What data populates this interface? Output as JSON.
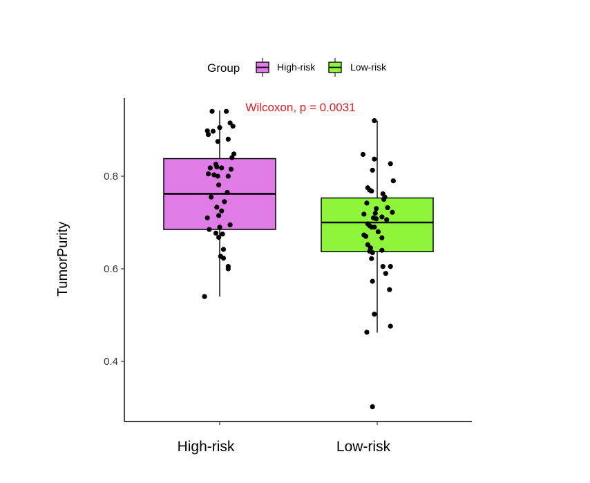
{
  "chart_data": {
    "type": "boxplot",
    "ylabel": "TumorPurity",
    "ylim": [
      0.28,
      0.96
    ],
    "yticks": [
      0.4,
      0.6,
      0.8
    ],
    "ytick_labels": [
      "0.4",
      "0.6",
      "0.8"
    ],
    "categories": [
      "High-risk",
      "Low-risk"
    ],
    "legend": {
      "title": "Group",
      "position": "top",
      "entries": [
        "High-risk",
        "Low-risk"
      ]
    },
    "annotation": {
      "text": "Wilcoxon, p = 0.0031",
      "color": "#e41a1c"
    },
    "grid": false,
    "series": [
      {
        "name": "High-risk",
        "color": "#e07ce6",
        "box": {
          "min": 0.54,
          "q1": 0.685,
          "median": 0.762,
          "q3": 0.838,
          "max": 0.942
        },
        "points": [
          {
            "x": -0.08,
            "y": 0.94
          },
          {
            "x": 0.07,
            "y": 0.94
          },
          {
            "x": 0.11,
            "y": 0.915
          },
          {
            "x": 0.14,
            "y": 0.908
          },
          {
            "x": 0.0,
            "y": 0.905
          },
          {
            "x": -0.13,
            "y": 0.898
          },
          {
            "x": -0.07,
            "y": 0.897
          },
          {
            "x": -0.12,
            "y": 0.89
          },
          {
            "x": 0.09,
            "y": 0.88
          },
          {
            "x": -0.02,
            "y": 0.875
          },
          {
            "x": 0.15,
            "y": 0.848
          },
          {
            "x": 0.13,
            "y": 0.84
          },
          {
            "x": -0.04,
            "y": 0.826
          },
          {
            "x": -0.03,
            "y": 0.82
          },
          {
            "x": -0.1,
            "y": 0.818
          },
          {
            "x": 0.02,
            "y": 0.818
          },
          {
            "x": 0.12,
            "y": 0.815
          },
          {
            "x": -0.12,
            "y": 0.805
          },
          {
            "x": -0.06,
            "y": 0.803
          },
          {
            "x": -0.02,
            "y": 0.8
          },
          {
            "x": 0.09,
            "y": 0.8
          },
          {
            "x": -0.01,
            "y": 0.781
          },
          {
            "x": 0.08,
            "y": 0.765
          },
          {
            "x": -0.09,
            "y": 0.755
          },
          {
            "x": 0.05,
            "y": 0.745
          },
          {
            "x": -0.03,
            "y": 0.733
          },
          {
            "x": 0.02,
            "y": 0.725
          },
          {
            "x": -0.01,
            "y": 0.715
          },
          {
            "x": -0.13,
            "y": 0.71
          },
          {
            "x": 0.11,
            "y": 0.695
          },
          {
            "x": 0.0,
            "y": 0.69
          },
          {
            "x": -0.11,
            "y": 0.685
          },
          {
            "x": -0.04,
            "y": 0.677
          },
          {
            "x": 0.03,
            "y": 0.675
          },
          {
            "x": -0.01,
            "y": 0.668
          },
          {
            "x": 0.04,
            "y": 0.642
          },
          {
            "x": 0.01,
            "y": 0.627
          },
          {
            "x": 0.04,
            "y": 0.623
          },
          {
            "x": 0.09,
            "y": 0.605
          },
          {
            "x": 0.09,
            "y": 0.6
          },
          {
            "x": -0.16,
            "y": 0.54
          }
        ]
      },
      {
        "name": "Low-risk",
        "color": "#8ef53b",
        "box": {
          "min": 0.462,
          "q1": 0.637,
          "median": 0.7,
          "q3": 0.753,
          "max": 0.92
        },
        "points": [
          {
            "x": -0.03,
            "y": 0.92
          },
          {
            "x": -0.15,
            "y": 0.847
          },
          {
            "x": -0.03,
            "y": 0.837
          },
          {
            "x": 0.14,
            "y": 0.827
          },
          {
            "x": -0.05,
            "y": 0.813
          },
          {
            "x": 0.17,
            "y": 0.79
          },
          {
            "x": -0.1,
            "y": 0.775
          },
          {
            "x": -0.08,
            "y": 0.77
          },
          {
            "x": -0.06,
            "y": 0.768
          },
          {
            "x": 0.06,
            "y": 0.762
          },
          {
            "x": 0.08,
            "y": 0.755
          },
          {
            "x": 0.07,
            "y": 0.75
          },
          {
            "x": -0.11,
            "y": 0.742
          },
          {
            "x": 0.11,
            "y": 0.732
          },
          {
            "x": -0.01,
            "y": 0.73
          },
          {
            "x": 0.16,
            "y": 0.722
          },
          {
            "x": -0.02,
            "y": 0.72
          },
          {
            "x": -0.14,
            "y": 0.718
          },
          {
            "x": 0.05,
            "y": 0.712
          },
          {
            "x": -0.04,
            "y": 0.71
          },
          {
            "x": -0.01,
            "y": 0.708
          },
          {
            "x": 0.1,
            "y": 0.706
          },
          {
            "x": -0.1,
            "y": 0.697
          },
          {
            "x": -0.08,
            "y": 0.693
          },
          {
            "x": -0.06,
            "y": 0.69
          },
          {
            "x": -0.03,
            "y": 0.69
          },
          {
            "x": 0.01,
            "y": 0.68
          },
          {
            "x": -0.14,
            "y": 0.673
          },
          {
            "x": -0.12,
            "y": 0.67
          },
          {
            "x": 0.05,
            "y": 0.667
          },
          {
            "x": -0.1,
            "y": 0.652
          },
          {
            "x": -0.07,
            "y": 0.645
          },
          {
            "x": -0.08,
            "y": 0.638
          },
          {
            "x": -0.05,
            "y": 0.635
          },
          {
            "x": 0.05,
            "y": 0.64
          },
          {
            "x": -0.06,
            "y": 0.622
          },
          {
            "x": 0.06,
            "y": 0.605
          },
          {
            "x": 0.14,
            "y": 0.605
          },
          {
            "x": 0.09,
            "y": 0.59
          },
          {
            "x": -0.05,
            "y": 0.573
          },
          {
            "x": 0.13,
            "y": 0.555
          },
          {
            "x": -0.03,
            "y": 0.502
          },
          {
            "x": 0.14,
            "y": 0.476
          },
          {
            "x": -0.11,
            "y": 0.463
          },
          {
            "x": -0.05,
            "y": 0.302
          }
        ]
      }
    ]
  }
}
